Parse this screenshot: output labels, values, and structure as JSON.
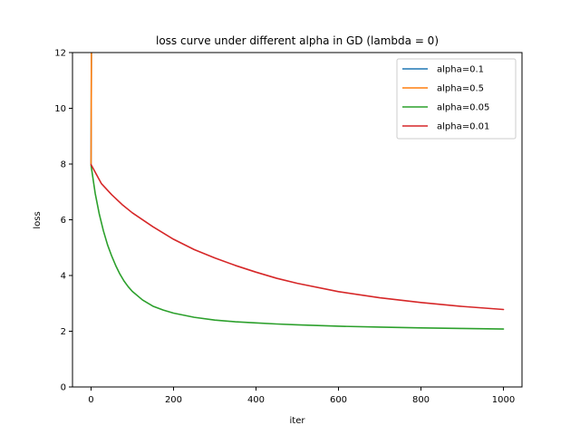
{
  "chart_data": {
    "type": "line",
    "title": "loss curve under different alpha in GD (lambda = 0)",
    "xlabel": "iter",
    "ylabel": "loss",
    "xlim": [
      -45,
      1045
    ],
    "ylim": [
      0,
      12
    ],
    "xticks": [
      0,
      200,
      400,
      600,
      800,
      1000
    ],
    "yticks": [
      0,
      2,
      4,
      6,
      8,
      10,
      12
    ],
    "grid": false,
    "legend_position": "top-right",
    "series": [
      {
        "name": "alpha=0.1",
        "color": "#1f77b4",
        "x": [
          0,
          1
        ],
        "y": [
          8.0,
          12.5
        ]
      },
      {
        "name": "alpha=0.5",
        "color": "#ff7f0e",
        "x": [
          0,
          1
        ],
        "y": [
          8.0,
          12.5
        ]
      },
      {
        "name": "alpha=0.05",
        "color": "#2ca02c",
        "x": [
          0,
          10,
          20,
          30,
          40,
          50,
          60,
          70,
          80,
          90,
          100,
          125,
          150,
          175,
          200,
          250,
          300,
          350,
          400,
          450,
          500,
          600,
          700,
          800,
          900,
          1000
        ],
        "y": [
          7.95,
          6.95,
          6.2,
          5.6,
          5.1,
          4.7,
          4.35,
          4.05,
          3.8,
          3.6,
          3.43,
          3.12,
          2.9,
          2.76,
          2.65,
          2.5,
          2.4,
          2.34,
          2.3,
          2.26,
          2.23,
          2.18,
          2.15,
          2.12,
          2.1,
          2.08
        ]
      },
      {
        "name": "alpha=0.01",
        "color": "#d62728",
        "x": [
          0,
          25,
          50,
          75,
          100,
          150,
          200,
          250,
          300,
          350,
          400,
          450,
          500,
          600,
          700,
          800,
          900,
          1000
        ],
        "y": [
          7.98,
          7.3,
          6.9,
          6.55,
          6.25,
          5.75,
          5.3,
          4.93,
          4.63,
          4.36,
          4.12,
          3.9,
          3.72,
          3.42,
          3.2,
          3.03,
          2.89,
          2.78
        ]
      }
    ]
  }
}
